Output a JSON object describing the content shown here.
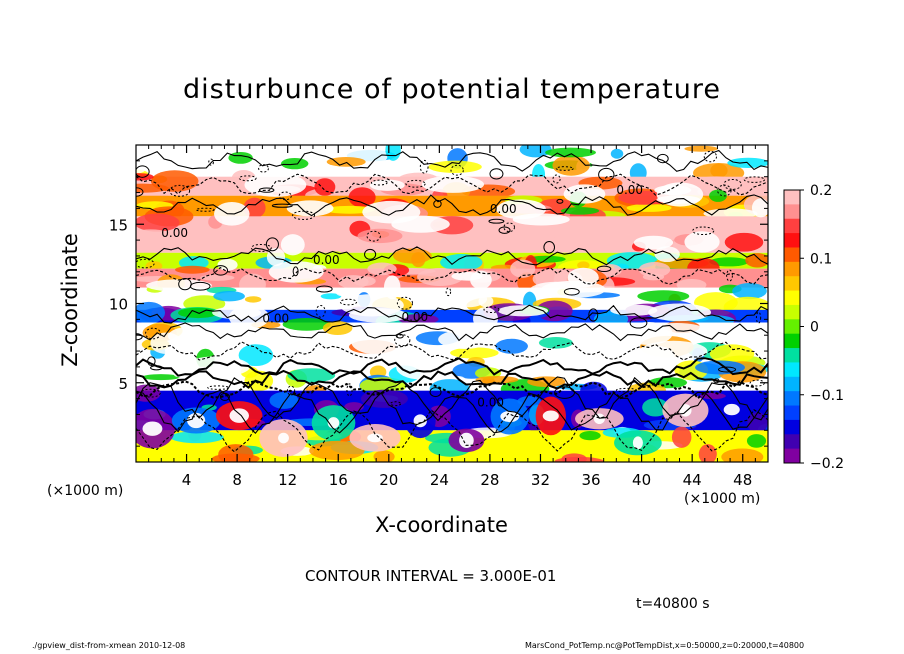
{
  "chart_data": {
    "type": "heatmap",
    "title": "disturbunce of potential temperature",
    "xlabel": "X-coordinate",
    "ylabel": "Z-coordinate",
    "x_unit": "(×1000 m)",
    "x_ticks": [
      4,
      8,
      12,
      16,
      20,
      24,
      28,
      32,
      36,
      40,
      44,
      48
    ],
    "y_ticks": [
      5,
      10,
      15
    ],
    "xlim": [
      0,
      50
    ],
    "ylim": [
      0,
      20
    ],
    "colorbar": {
      "ticks": [
        0.2,
        0.1,
        0,
        -0.1,
        -0.2
      ],
      "tick_labels": [
        "0.2",
        "0.1",
        "0",
        "−0.1",
        "−0.2"
      ],
      "range": [
        -0.2,
        0.2
      ],
      "colors": [
        "#ffc0c0",
        "#ff9090",
        "#ff4040",
        "#ff1010",
        "#ff5a00",
        "#ff9a00",
        "#ffc800",
        "#ffff00",
        "#c8ff00",
        "#64f000",
        "#00d000",
        "#00e0a0",
        "#00e8ff",
        "#00b4ff",
        "#0078ff",
        "#0040ff",
        "#0000e0",
        "#4000b0",
        "#8000a0"
      ]
    },
    "bands": [
      {
        "z": [
          18,
          20
        ],
        "value": 0.0
      },
      {
        "z": [
          16.8,
          18
        ],
        "value": 0.18
      },
      {
        "z": [
          15.5,
          16.8
        ],
        "value": 0.08
      },
      {
        "z": [
          13.2,
          15.5
        ],
        "value": 0.2
      },
      {
        "z": [
          12.2,
          13.2
        ],
        "value": 0.03
      },
      {
        "z": [
          11.0,
          12.2
        ],
        "value": 0.17
      },
      {
        "z": [
          9.6,
          11.0
        ],
        "value": 0.0
      },
      {
        "z": [
          8.8,
          9.6
        ],
        "value": -0.12
      },
      {
        "z": [
          6.0,
          8.8
        ],
        "value": 0.0
      },
      {
        "z": [
          4.5,
          6.0
        ],
        "value": 0.0
      },
      {
        "z": [
          2.0,
          4.5
        ],
        "value": -0.15
      },
      {
        "z": [
          0,
          2.0
        ],
        "value": 0.05
      }
    ],
    "contour_labels": [
      "0.00",
      "0.00",
      "0.00",
      "0.00",
      "0.00",
      "0.00",
      "0.00"
    ]
  },
  "texts": {
    "contour_interval": "CONTOUR INTERVAL = 3.000E-01",
    "time": "t=40800  s",
    "footer_left": "./gpview_dist-from-xmean   2010-12-08",
    "footer_right": "MarsCond_PotTemp.nc@PotTempDist,x=0:50000,z=0:20000,t=40800"
  }
}
